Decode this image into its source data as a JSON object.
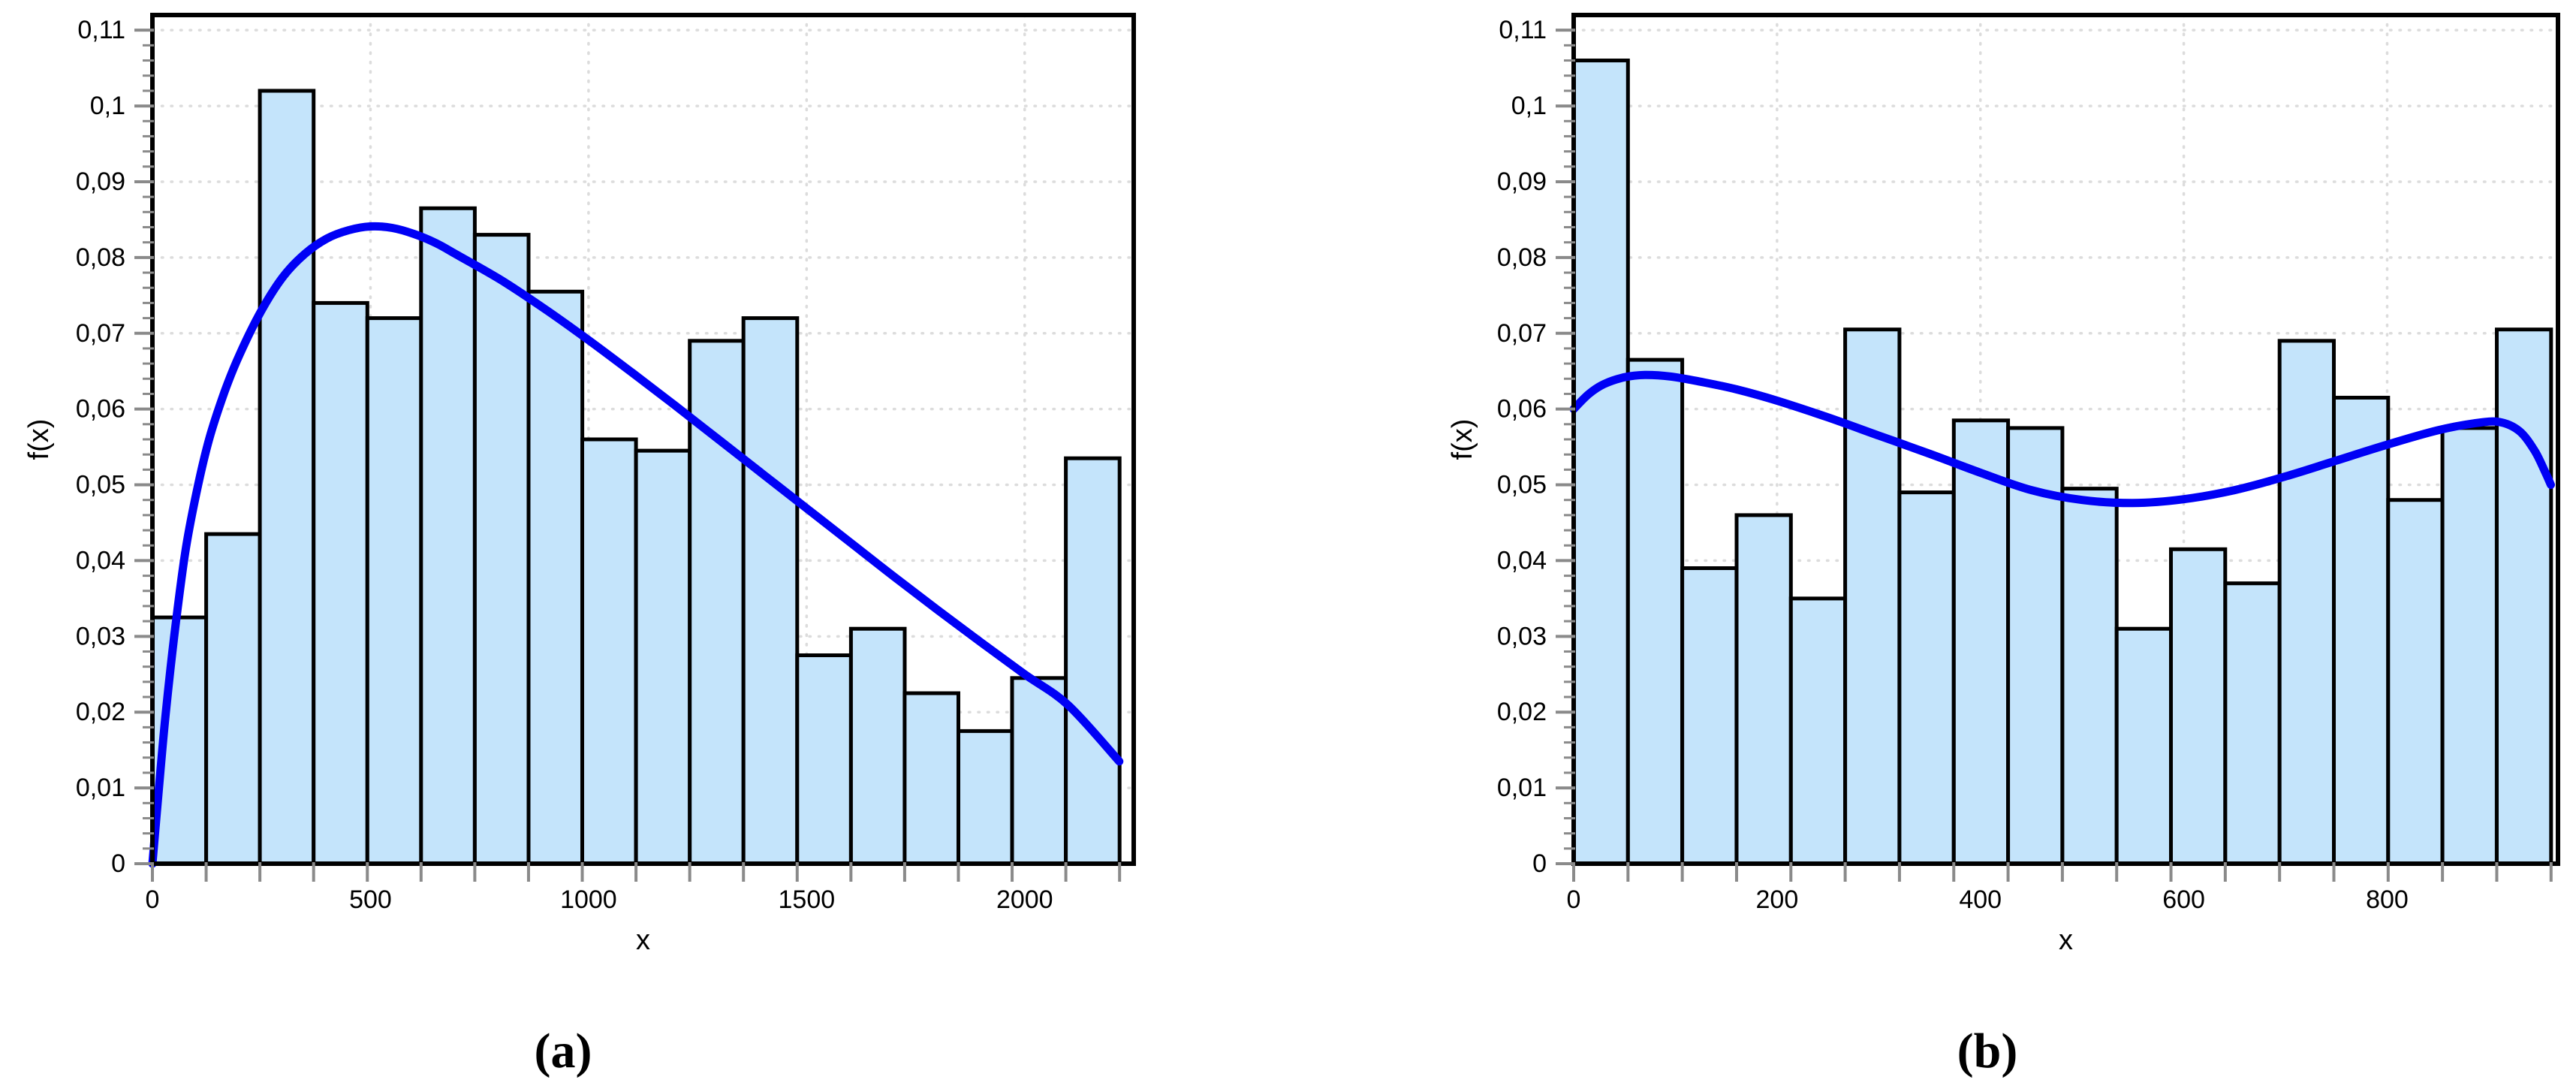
{
  "figure": {
    "background": "#FFFFFF",
    "captions": {
      "a": "(a)",
      "b": "(b)"
    }
  },
  "chart_data": [
    {
      "id": "a",
      "type": "bar",
      "subtype": "histogram-with-density-curve",
      "caption": "(a)",
      "xlabel": "x",
      "ylabel": "f(x)",
      "x_range": [
        0,
        2250
      ],
      "y_range": [
        0,
        0.112
      ],
      "y_major_step": 0.01,
      "y_minor_step": 0.002,
      "decimal_separator": ",",
      "x_tick_labels": [
        0,
        500,
        1000,
        1500,
        2000
      ],
      "y_tick_labels": [
        "0",
        "0,01",
        "0,02",
        "0,03",
        "0,04",
        "0,05",
        "0,06",
        "0,07",
        "0,08",
        "0,09",
        "0,1",
        "0,11"
      ],
      "grid": {
        "horizontal_dotted": true,
        "vertical_dotted_at_labeled_x": true
      },
      "bins": {
        "start": 0,
        "width": 123.2,
        "values": [
          0.0325,
          0.0435,
          0.102,
          0.074,
          0.072,
          0.0865,
          0.083,
          0.0755,
          0.056,
          0.0545,
          0.069,
          0.072,
          0.0275,
          0.031,
          0.0225,
          0.0175,
          0.0245,
          0.0535
        ]
      },
      "curve": {
        "name": "fitted-density-curve",
        "points": [
          [
            0,
            0
          ],
          [
            15,
            0.01
          ],
          [
            30,
            0.0195
          ],
          [
            50,
            0.03
          ],
          [
            75,
            0.041
          ],
          [
            100,
            0.0487
          ],
          [
            130,
            0.056
          ],
          [
            165,
            0.0622
          ],
          [
            200,
            0.0672
          ],
          [
            250,
            0.073
          ],
          [
            300,
            0.0775
          ],
          [
            350,
            0.0805
          ],
          [
            400,
            0.0825
          ],
          [
            450,
            0.0836
          ],
          [
            500,
            0.0841
          ],
          [
            550,
            0.0839
          ],
          [
            600,
            0.0831
          ],
          [
            650,
            0.0819
          ],
          [
            700,
            0.0803
          ],
          [
            800,
            0.077
          ],
          [
            900,
            0.0732
          ],
          [
            1000,
            0.0691
          ],
          [
            1100,
            0.0648
          ],
          [
            1200,
            0.0604
          ],
          [
            1300,
            0.0559
          ],
          [
            1400,
            0.0514
          ],
          [
            1500,
            0.0469
          ],
          [
            1600,
            0.0424
          ],
          [
            1700,
            0.0379
          ],
          [
            1800,
            0.0335
          ],
          [
            1900,
            0.0292
          ],
          [
            2000,
            0.025
          ],
          [
            2100,
            0.0209
          ],
          [
            2217,
            0.0135
          ]
        ]
      },
      "colors": {
        "bar_fill": "#C4E4FB",
        "bar_border": "#000000",
        "curve": "#0000F5",
        "grid": "#DCDCDC",
        "tick": "#8A8A8A",
        "frame": "#000000",
        "text": "#000000"
      }
    },
    {
      "id": "b",
      "type": "bar",
      "subtype": "histogram-with-density-curve",
      "caption": "(b)",
      "xlabel": "x",
      "ylabel": "f(x)",
      "x_range": [
        0,
        968
      ],
      "y_range": [
        0,
        0.112
      ],
      "y_major_step": 0.01,
      "y_minor_step": 0.002,
      "decimal_separator": ",",
      "x_tick_labels": [
        0,
        200,
        400,
        600,
        800
      ],
      "y_tick_labels": [
        "0",
        "0,01",
        "0,02",
        "0,03",
        "0,04",
        "0,05",
        "0,06",
        "0,07",
        "0,08",
        "0,09",
        "0,1",
        "0,11"
      ],
      "grid": {
        "horizontal_dotted": true,
        "vertical_dotted_at_labeled_x": true
      },
      "bins": {
        "start": 0,
        "width": 53.4,
        "values": [
          0.106,
          0.0665,
          0.039,
          0.046,
          0.035,
          0.0705,
          0.049,
          0.0585,
          0.0575,
          0.0495,
          0.031,
          0.0415,
          0.037,
          0.069,
          0.0615,
          0.048,
          0.0575,
          0.0705
        ]
      },
      "curve": {
        "name": "fitted-density-curve",
        "points": [
          [
            0,
            0.06
          ],
          [
            15,
            0.062
          ],
          [
            30,
            0.0633
          ],
          [
            50,
            0.0642
          ],
          [
            70,
            0.0645
          ],
          [
            95,
            0.0643
          ],
          [
            125,
            0.0636
          ],
          [
            160,
            0.0626
          ],
          [
            200,
            0.0611
          ],
          [
            250,
            0.0589
          ],
          [
            300,
            0.0565
          ],
          [
            350,
            0.0541
          ],
          [
            400,
            0.0516
          ],
          [
            450,
            0.0493
          ],
          [
            500,
            0.048
          ],
          [
            550,
            0.0476
          ],
          [
            600,
            0.0481
          ],
          [
            650,
            0.0493
          ],
          [
            700,
            0.0511
          ],
          [
            750,
            0.0532
          ],
          [
            800,
            0.0553
          ],
          [
            850,
            0.0572
          ],
          [
            885,
            0.0581
          ],
          [
            910,
            0.0583
          ],
          [
            930,
            0.0571
          ],
          [
            945,
            0.0545
          ],
          [
            955,
            0.0518
          ],
          [
            961,
            0.05
          ]
        ]
      },
      "colors": {
        "bar_fill": "#C4E4FB",
        "bar_border": "#000000",
        "curve": "#0000F5",
        "grid": "#DCDCDC",
        "tick": "#8A8A8A",
        "frame": "#000000",
        "text": "#000000"
      }
    }
  ]
}
